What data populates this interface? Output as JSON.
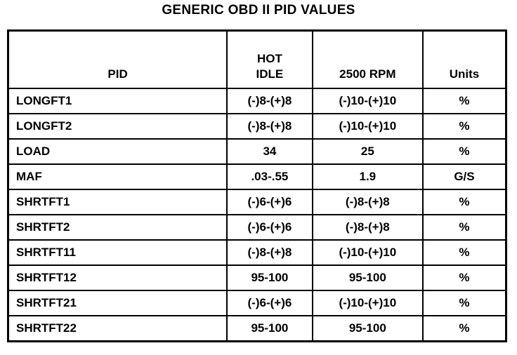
{
  "title": "GENERIC OBD II PID VALUES",
  "headers": {
    "pid": "PID",
    "hot_idle_line1": "HOT",
    "hot_idle_line2": "IDLE",
    "rpm": "2500 RPM",
    "units": "Units"
  },
  "rows": [
    {
      "pid": "LONGFT1",
      "hot_idle": "(-)8-(+)8",
      "rpm": "(-)10-(+)10",
      "units": "%"
    },
    {
      "pid": "LONGFT2",
      "hot_idle": "(-)8-(+)8",
      "rpm": "(-)10-(+)10",
      "units": "%"
    },
    {
      "pid": "LOAD",
      "hot_idle": "34",
      "rpm": "25",
      "units": "%"
    },
    {
      "pid": "MAF",
      "hot_idle": ".03-.55",
      "rpm": "1.9",
      "units": "G/S"
    },
    {
      "pid": "SHRTFT1",
      "hot_idle": "(-)6-(+)6",
      "rpm": "(-)8-(+)8",
      "units": "%"
    },
    {
      "pid": "SHRTFT2",
      "hot_idle": "(-)6-(+)6",
      "rpm": "(-)8-(+)8",
      "units": "%"
    },
    {
      "pid": "SHRTFT11",
      "hot_idle": "(-)8-(+)8",
      "rpm": "(-)10-(+)10",
      "units": "%"
    },
    {
      "pid": "SHRTFT12",
      "hot_idle": "95-100",
      "rpm": "95-100",
      "units": "%"
    },
    {
      "pid": "SHRTFT21",
      "hot_idle": "(-)6-(+)6",
      "rpm": "(-)10-(+)10",
      "units": "%"
    },
    {
      "pid": "SHRTFT22",
      "hot_idle": "95-100",
      "rpm": "95-100",
      "units": "%"
    }
  ]
}
